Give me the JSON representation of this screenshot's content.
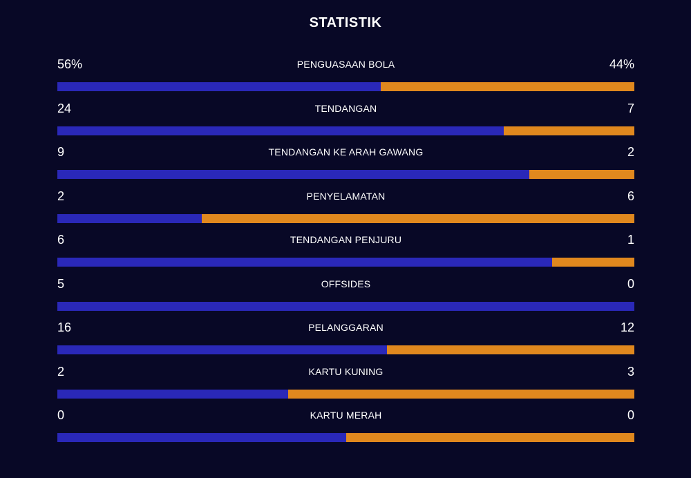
{
  "title": "STATISTIK",
  "colors": {
    "background": "#080826",
    "home_bar": "#2a28b8",
    "away_bar": "#e0881e",
    "text": "#ffffff"
  },
  "stats": [
    {
      "label": "PENGUASAAN BOLA",
      "home": "56%",
      "away": "44%",
      "home_share": 0.56
    },
    {
      "label": "TENDANGAN",
      "home": "24",
      "away": "7",
      "home_share": 0.774
    },
    {
      "label": "TENDANGAN KE ARAH GAWANG",
      "home": "9",
      "away": "2",
      "home_share": 0.818
    },
    {
      "label": "PENYELAMATAN",
      "home": "2",
      "away": "6",
      "home_share": 0.25
    },
    {
      "label": "TENDANGAN PENJURU",
      "home": "6",
      "away": "1",
      "home_share": 0.857
    },
    {
      "label": "OFFSIDES",
      "home": "5",
      "away": "0",
      "home_share": 1.0
    },
    {
      "label": "PELANGGARAN",
      "home": "16",
      "away": "12",
      "home_share": 0.571
    },
    {
      "label": "KARTU KUNING",
      "home": "2",
      "away": "3",
      "home_share": 0.4
    },
    {
      "label": "KARTU MERAH",
      "home": "0",
      "away": "0",
      "home_share": 0.5
    }
  ]
}
